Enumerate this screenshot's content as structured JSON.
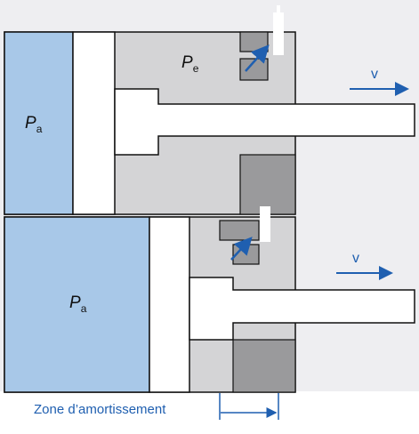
{
  "top_diagram": {
    "pressure_left_symbol": "P",
    "pressure_left_sub": "a",
    "pressure_right_symbol": "P",
    "pressure_right_sub": "e",
    "velocity_label": "v"
  },
  "bottom_diagram": {
    "pressure_symbol": "P",
    "pressure_sub": "a",
    "velocity_label": "v"
  },
  "caption": "Zone d’amortissement",
  "colors": {
    "chamber_blue": "#a8c8e8",
    "cylinder_light": "#d4d4d6",
    "valve_dark": "#9a9a9c",
    "arrow_blue": "#1f5fb0",
    "outline": "#111111",
    "page_text_bg": "#e6e6ea"
  }
}
